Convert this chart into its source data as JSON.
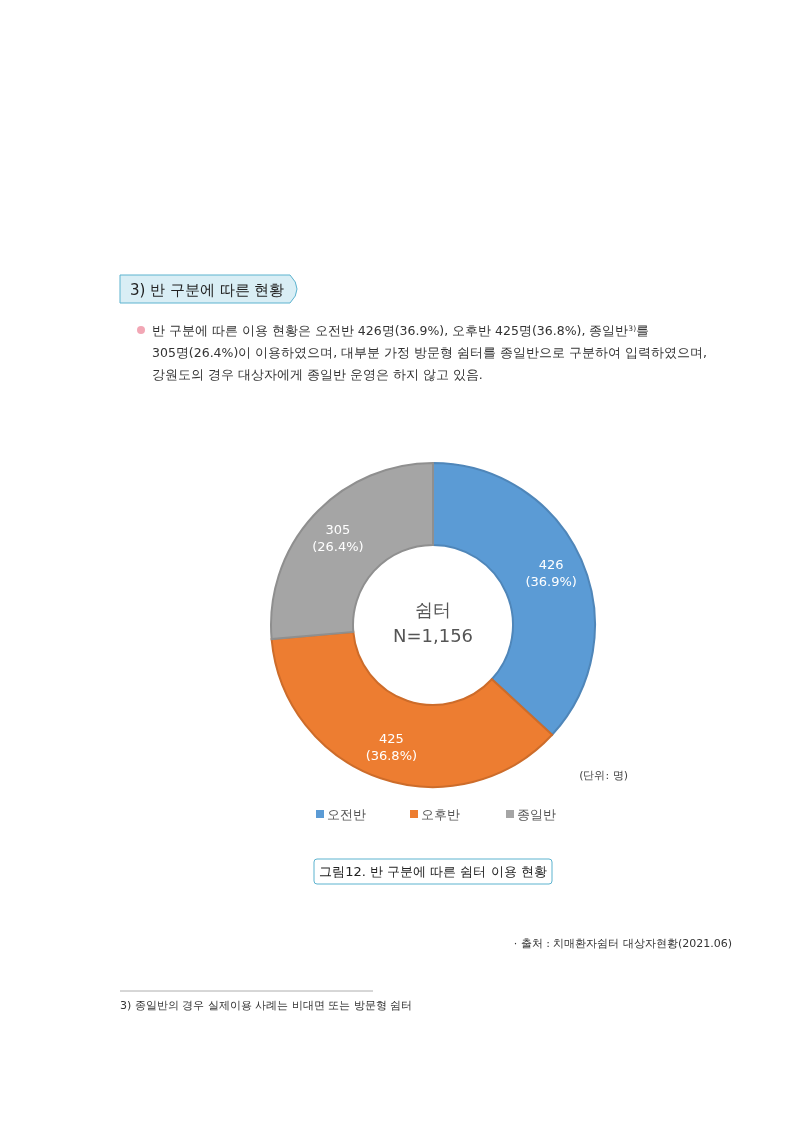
{
  "chart_data": {
    "type": "donut",
    "title": "그림12. 반 구분에 따른 쉼터 이용 현황",
    "categories": [
      "오전반",
      "오후반",
      "종일반"
    ],
    "values": [
      426,
      425,
      305
    ],
    "colors": [
      "#5b9bd5",
      "#ed7d31",
      "#a5a5a5"
    ],
    "value_labels": [
      "426\n(36.9%)",
      "425\n(36.8%)",
      "305\n(26.4%)"
    ],
    "legend": "bottom",
    "annotations": [
      "3) 반 구분에 따른 현황",
      "반 구분에 따른 이용 현황은 오전반 426명(36.9%), 오후반 425명(36.8%), 종일반$^{3)}$를 305명(26.4%)이 이용하였으며, 대부분 가정 방문형 쉼터를 종일반으로 구분하여 입력하였으며, 강원도의 경우 대상자에게 종일반 운영은 하지 않고 있음.",
      "쉼터",
      "N=1,156",
      "(단위: 명)",
      "· 출처 : 치매환자쉼터 대상자현황(2021.06)",
      "3)  종일반의 경우 실제이용 사례는 비대면 또는 방문형 쉼터"
    ]
  }
}
